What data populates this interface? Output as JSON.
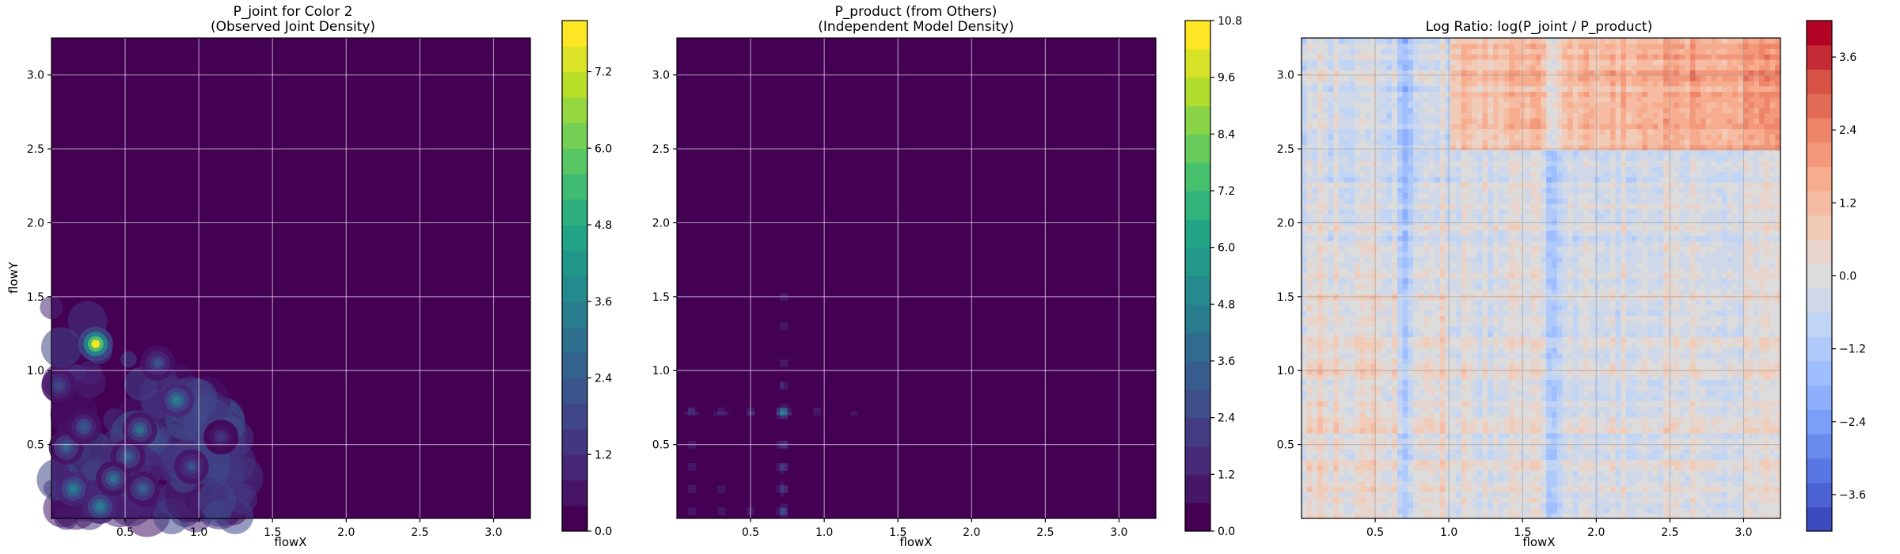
{
  "chart_data": [
    {
      "type": "heatmap",
      "title": "P_joint for Color 2",
      "subtitle": "(Observed Joint Density)",
      "xlabel": "flowX",
      "ylabel": "flowY",
      "xlim": [
        0.0,
        3.25
      ],
      "ylim": [
        0.0,
        3.25
      ],
      "xticks": [
        "0.5",
        "1.0",
        "1.5",
        "2.0",
        "2.5",
        "3.0"
      ],
      "yticks": [
        "0.5",
        "1.0",
        "1.5",
        "2.0",
        "2.5",
        "3.0"
      ],
      "grid": true,
      "colormap": "viridis",
      "colorbar": {
        "min": 0.0,
        "max": 8.0,
        "levels": 20,
        "ticks": [
          "0.0",
          "1.2",
          "2.4",
          "3.6",
          "4.8",
          "6.0",
          "7.2"
        ]
      },
      "hotspots": [
        {
          "x": 0.3,
          "y": 1.18,
          "value": 7.6
        },
        {
          "x": 0.85,
          "y": 0.8,
          "value": 3.2
        },
        {
          "x": 0.6,
          "y": 0.6,
          "value": 3.0
        },
        {
          "x": 0.15,
          "y": 0.2,
          "value": 3.5
        },
        {
          "x": 0.33,
          "y": 0.08,
          "value": 3.3
        },
        {
          "x": 0.52,
          "y": 0.42,
          "value": 2.6
        },
        {
          "x": 0.1,
          "y": 0.48,
          "value": 2.6
        },
        {
          "x": 0.72,
          "y": 1.05,
          "value": 2.0
        },
        {
          "x": 0.42,
          "y": 0.27,
          "value": 2.8
        },
        {
          "x": 0.22,
          "y": 0.62,
          "value": 2.2
        },
        {
          "x": 0.05,
          "y": 0.9,
          "value": 1.8
        },
        {
          "x": 0.95,
          "y": 0.35,
          "value": 2.1
        },
        {
          "x": 1.15,
          "y": 0.55,
          "value": 1.4
        },
        {
          "x": 0.62,
          "y": 0.2,
          "value": 2.4
        }
      ]
    },
    {
      "type": "heatmap",
      "title": "P_product (from Others)",
      "subtitle": "(Independent Model Density)",
      "xlabel": "flowX",
      "ylabel": "",
      "xlim": [
        0.0,
        3.25
      ],
      "ylim": [
        0.0,
        3.25
      ],
      "xticks": [
        "0.5",
        "1.0",
        "1.5",
        "2.0",
        "2.5",
        "3.0"
      ],
      "yticks": [
        "0.5",
        "1.0",
        "1.5",
        "2.0",
        "2.5",
        "3.0"
      ],
      "grid": true,
      "colormap": "viridis",
      "colorbar": {
        "min": 0.0,
        "max": 10.8,
        "levels": 18,
        "ticks": [
          "0.0",
          "1.2",
          "2.4",
          "3.6",
          "4.8",
          "6.0",
          "7.2",
          "8.4",
          "9.6",
          "10.8"
        ]
      },
      "marginal_peaks_x": [
        0.1,
        0.3,
        0.5,
        0.72,
        0.95,
        1.2,
        1.5,
        1.75
      ],
      "marginal_peaks_y": [
        0.05,
        0.2,
        0.35,
        0.5,
        0.72,
        0.9,
        1.05,
        1.3,
        1.5,
        1.8
      ],
      "peak": {
        "x": 0.72,
        "y": 0.72,
        "value": 5.2
      }
    },
    {
      "type": "heatmap",
      "title": "Log Ratio: log(P_joint / P_product)",
      "xlabel": "flowX",
      "ylabel": "",
      "xlim": [
        0.0,
        3.25
      ],
      "ylim": [
        0.0,
        3.25
      ],
      "xticks": [
        "0.5",
        "1.0",
        "1.5",
        "2.0",
        "2.5",
        "3.0"
      ],
      "yticks": [
        "0.5",
        "1.0",
        "1.5",
        "2.0",
        "2.5",
        "3.0"
      ],
      "grid": true,
      "colormap": "coolwarm",
      "colorbar": {
        "min": -4.2,
        "max": 4.2,
        "levels": 21,
        "ticks": [
          "-3.6",
          "-2.4",
          "-1.2",
          "0.0",
          "1.2",
          "2.4",
          "3.6"
        ]
      },
      "blue_bands_x": [
        0.7,
        1.7
      ],
      "red_region": {
        "x_from": 1.0,
        "y_from": 2.5
      }
    }
  ]
}
